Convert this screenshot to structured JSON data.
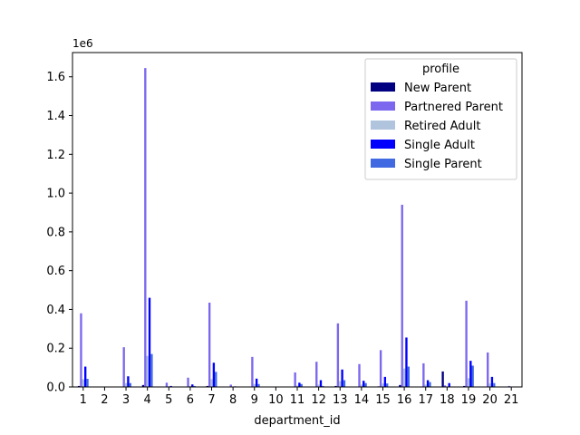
{
  "chart_data": {
    "type": "bar",
    "xlabel": "department_id",
    "ylabel": "",
    "scale_label": "1e6",
    "ylim": [
      0,
      1725000
    ],
    "yticks": [
      {
        "value": 0,
        "label": "0.0"
      },
      {
        "value": 200000,
        "label": "0.2"
      },
      {
        "value": 400000,
        "label": "0.4"
      },
      {
        "value": 600000,
        "label": "0.6"
      },
      {
        "value": 800000,
        "label": "0.8"
      },
      {
        "value": 1000000,
        "label": "1.0"
      },
      {
        "value": 1200000,
        "label": "1.2"
      },
      {
        "value": 1400000,
        "label": "1.4"
      },
      {
        "value": 1600000,
        "label": "1.6"
      }
    ],
    "categories": [
      "1",
      "2",
      "3",
      "4",
      "5",
      "6",
      "7",
      "8",
      "9",
      "10",
      "11",
      "12",
      "13",
      "14",
      "15",
      "16",
      "17",
      "18",
      "19",
      "20",
      "21"
    ],
    "legend": {
      "title": "profile",
      "placement": "top-right"
    },
    "grid": false,
    "series": [
      {
        "name": "New Parent",
        "color": "#000080",
        "values": [
          5000,
          0,
          2000,
          10000,
          0,
          1000,
          5000,
          0,
          2000,
          0,
          1000,
          2000,
          5000,
          2000,
          3000,
          10000,
          2000,
          80000,
          5000,
          2000,
          0
        ]
      },
      {
        "name": "Partnered Parent",
        "color": "#7b68ee",
        "values": [
          380000,
          1000,
          205000,
          1645000,
          22000,
          48000,
          435000,
          12000,
          155000,
          2000,
          75000,
          130000,
          328000,
          118000,
          190000,
          940000,
          122000,
          8000,
          445000,
          178000,
          5000
        ]
      },
      {
        "name": "Retired Adult",
        "color": "#b0c4de",
        "values": [
          40000,
          0,
          20000,
          160000,
          3000,
          5000,
          40000,
          2000,
          15000,
          0,
          7000,
          12000,
          30000,
          12000,
          18000,
          95000,
          12000,
          2000,
          45000,
          18000,
          0
        ]
      },
      {
        "name": "Single Adult",
        "color": "#0000ff",
        "values": [
          105000,
          1000,
          55000,
          460000,
          5000,
          13000,
          125000,
          3000,
          43000,
          0,
          22000,
          35000,
          90000,
          32000,
          52000,
          255000,
          35000,
          20000,
          135000,
          52000,
          2000
        ]
      },
      {
        "name": "Single Parent",
        "color": "#4169e1",
        "values": [
          42000,
          0,
          20000,
          170000,
          2000,
          5000,
          78000,
          1000,
          15000,
          0,
          15000,
          5000,
          35000,
          20000,
          18000,
          105000,
          25000,
          0,
          110000,
          20000,
          0
        ]
      }
    ]
  }
}
